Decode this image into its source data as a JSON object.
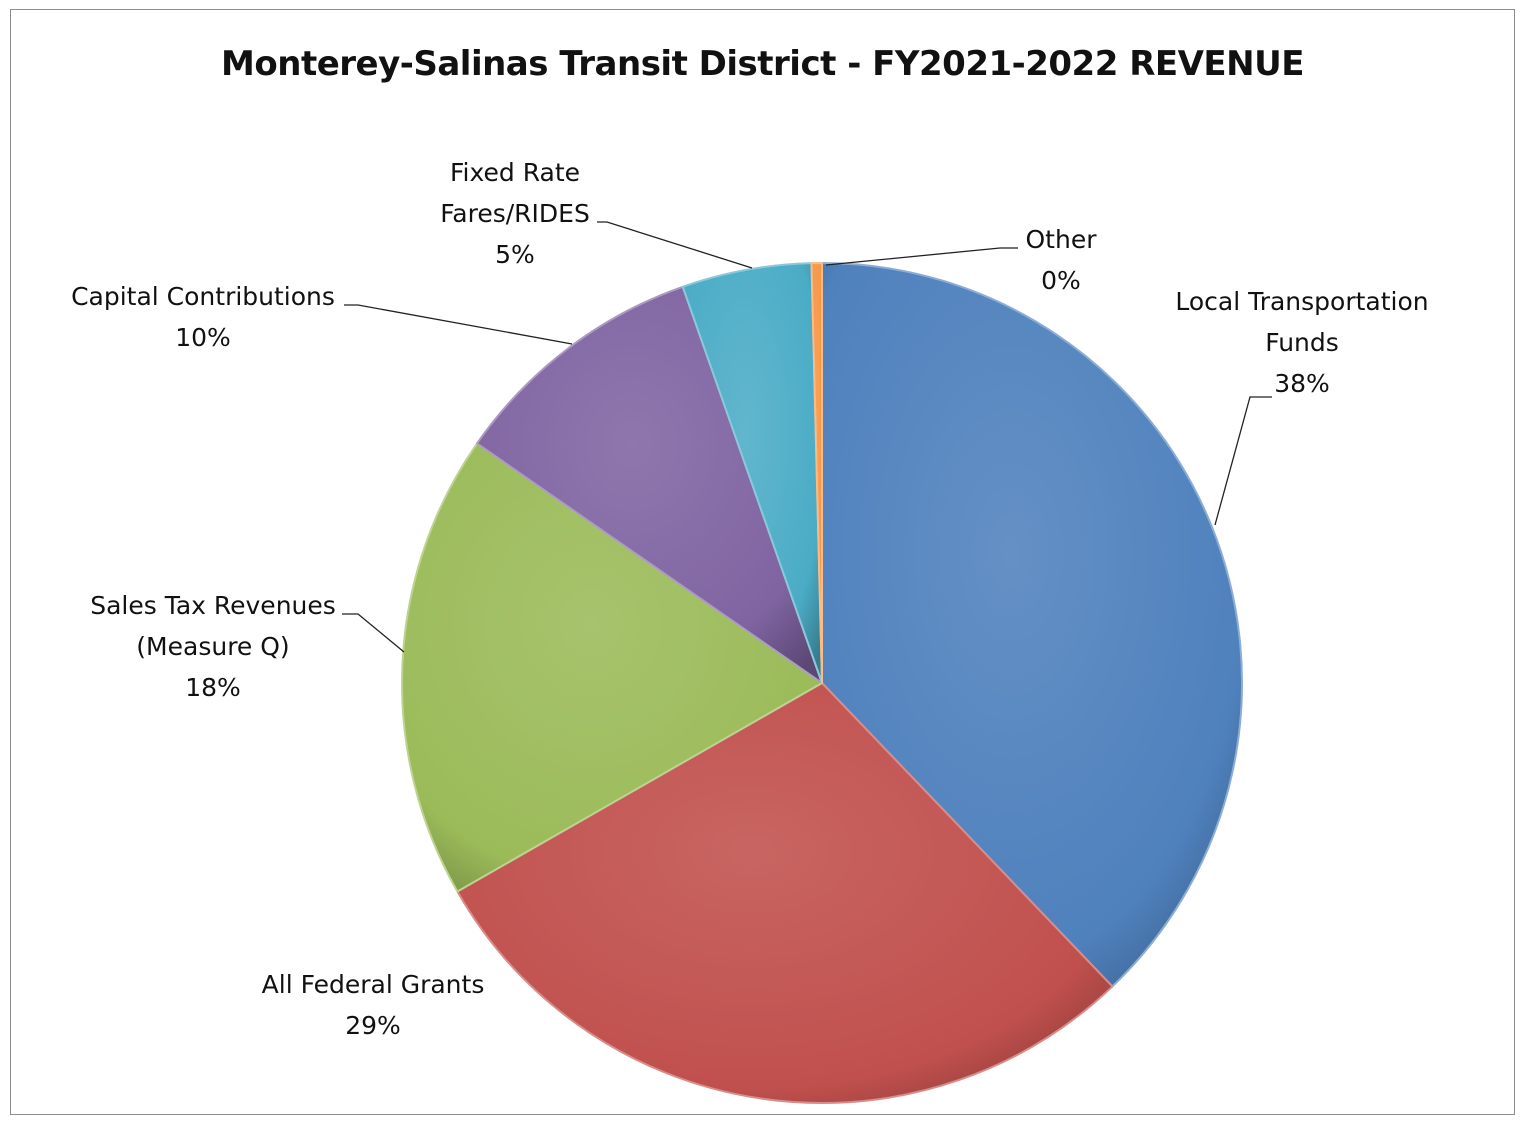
{
  "chart_data": {
    "type": "pie",
    "title": "Monterey-Salinas Transit District - FY2021-2022 REVENUE",
    "slices": [
      {
        "label_lines": [
          "Local Transportation",
          "Funds"
        ],
        "percent_label": "38%",
        "value": 38.0,
        "color": "#4f81bd"
      },
      {
        "label_lines": [
          "All Federal Grants"
        ],
        "percent_label": "29%",
        "value": 29.0,
        "color": "#c0504d"
      },
      {
        "label_lines": [
          "Sales Tax Revenues",
          "(Measure Q)"
        ],
        "percent_label": "18%",
        "value": 18.0,
        "color": "#9bbb59"
      },
      {
        "label_lines": [
          "Capital Contributions"
        ],
        "percent_label": "10%",
        "value": 10.0,
        "color": "#8064a2"
      },
      {
        "label_lines": [
          "Fixed Rate",
          "Fares/RIDES"
        ],
        "percent_label": "5%",
        "value": 5.0,
        "color": "#4bacc6"
      },
      {
        "label_lines": [
          "Other"
        ],
        "percent_label": "0%",
        "value": 0.4,
        "color": "#f79646"
      }
    ],
    "start_angle_deg": 0,
    "direction": "clockwise",
    "legend": "none",
    "data_labels": "outside with leader lines"
  }
}
